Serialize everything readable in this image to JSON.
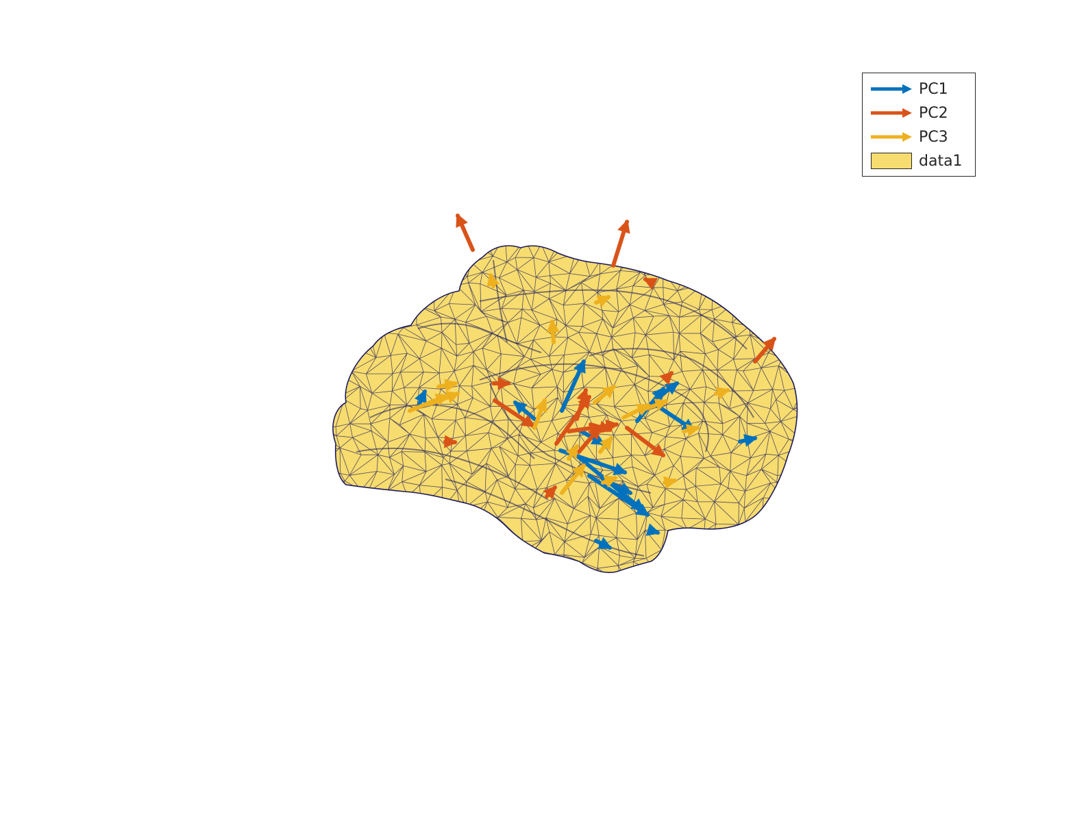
{
  "colors": {
    "pc1": "#0072BD",
    "pc2": "#D95319",
    "pc3": "#EDB120",
    "surface": "#F7DC6F",
    "mesh_edge": "#1a1a5e"
  },
  "legend": {
    "placement": "top-right",
    "items": [
      {
        "label": "PC1",
        "kind": "arrow",
        "color_key": "pc1"
      },
      {
        "label": "PC2",
        "kind": "arrow",
        "color_key": "pc2"
      },
      {
        "label": "PC3",
        "kind": "arrow",
        "color_key": "pc3"
      },
      {
        "label": "data1",
        "kind": "patch",
        "color_key": "surface"
      }
    ]
  },
  "scene": {
    "object": "cortical surface mesh",
    "axes_visible": false,
    "grid": false
  }
}
